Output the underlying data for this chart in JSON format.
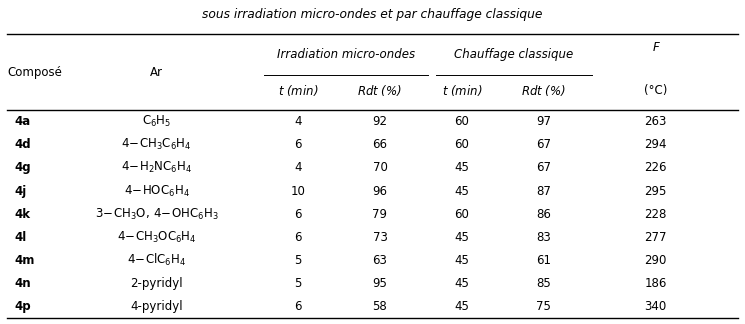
{
  "title": "sous irradiation micro-ondes et par chauffage classique",
  "rows": [
    {
      "composé": "4a",
      "ar": "$\\mathregular{C_6H_5}$",
      "mw_t": "4",
      "mw_rdt": "92",
      "cc_t": "60",
      "cc_rdt": "97",
      "f": "263"
    },
    {
      "composé": "4d",
      "ar": "$\\mathregular{4\\!-\\!CH_3C_6H_4}$",
      "mw_t": "6",
      "mw_rdt": "66",
      "cc_t": "60",
      "cc_rdt": "67",
      "f": "294"
    },
    {
      "composé": "4g",
      "ar": "$\\mathregular{4\\!-\\!H_2NC_6H_4}$",
      "mw_t": "4",
      "mw_rdt": "70",
      "cc_t": "45",
      "cc_rdt": "67",
      "f": "226"
    },
    {
      "composé": "4j",
      "ar": "$\\mathregular{4\\!-\\!HOC_6H_4}$",
      "mw_t": "10",
      "mw_rdt": "96",
      "cc_t": "45",
      "cc_rdt": "87",
      "f": "295"
    },
    {
      "composé": "4k",
      "ar": "$\\mathregular{3\\!-\\!CH_3O,\\,4\\!-\\!OHC_6H_3}$",
      "mw_t": "6",
      "mw_rdt": "79",
      "cc_t": "60",
      "cc_rdt": "86",
      "f": "228"
    },
    {
      "composé": "4l",
      "ar": "$\\mathregular{4\\!-\\!CH_3OC_6H_4}$",
      "mw_t": "6",
      "mw_rdt": "73",
      "cc_t": "45",
      "cc_rdt": "83",
      "f": "277"
    },
    {
      "composé": "4m",
      "ar": "$\\mathregular{4\\!-\\!ClC_6H_4}$",
      "mw_t": "5",
      "mw_rdt": "63",
      "cc_t": "45",
      "cc_rdt": "61",
      "f": "290"
    },
    {
      "composé": "4n",
      "ar": "2-pyridyl",
      "mw_t": "5",
      "mw_rdt": "95",
      "cc_t": "45",
      "cc_rdt": "85",
      "f": "186"
    },
    {
      "composé": "4p",
      "ar": "4-pyridyl",
      "mw_t": "6",
      "mw_rdt": "58",
      "cc_t": "45",
      "cc_rdt": "75",
      "f": "340"
    }
  ],
  "background_color": "#ffffff",
  "text_color": "#000000",
  "fontsize": 8.5,
  "title_fontsize": 8.8
}
